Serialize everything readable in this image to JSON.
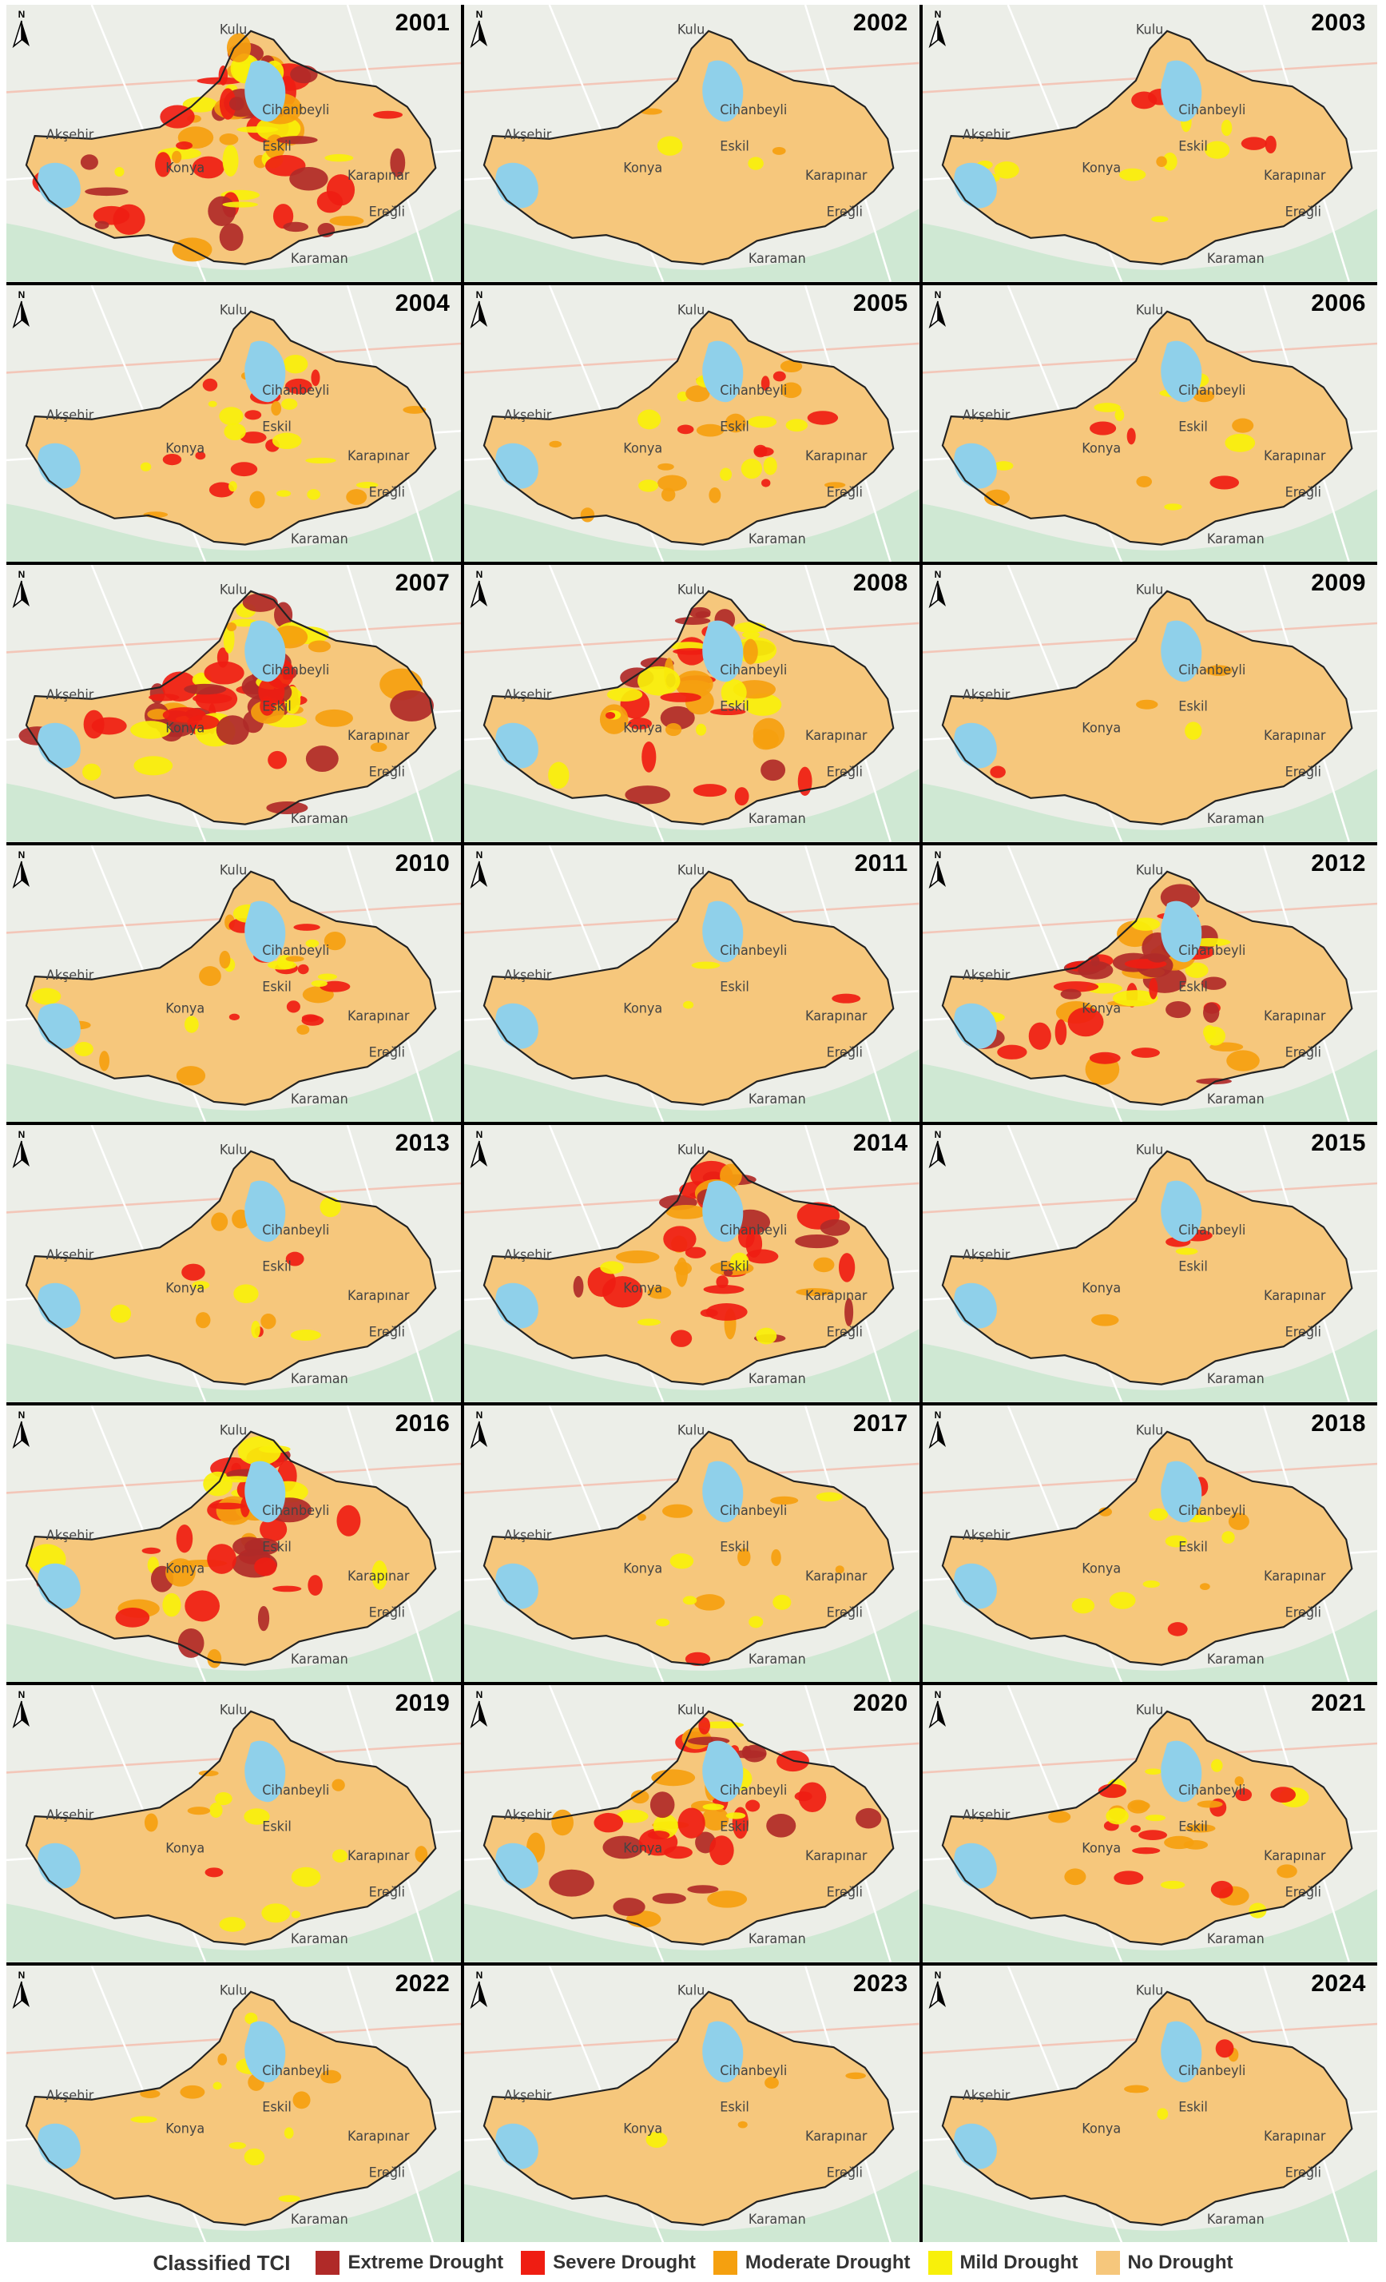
{
  "figure": {
    "legend_title": "Classified TCI",
    "north_label": "N",
    "classes": [
      {
        "label": "Extreme Drought",
        "color": "#b02a28"
      },
      {
        "label": "Severe Drought",
        "color": "#ef1d12"
      },
      {
        "label": "Moderate Drought",
        "color": "#f5a00f"
      },
      {
        "label": "Mild Drought",
        "color": "#f8f00a"
      },
      {
        "label": "No Drought",
        "color": "#f6c77c"
      }
    ],
    "place_labels": [
      "Karaman",
      "Eskil",
      "Konya",
      "Ereğli",
      "Karapınar",
      "Kulu",
      "Cihanbeyli",
      "Akşehir"
    ],
    "panels": [
      {
        "year": "2001",
        "severity": 5
      },
      {
        "year": "2002",
        "severity": 1
      },
      {
        "year": "2003",
        "severity": 2
      },
      {
        "year": "2004",
        "severity": 3
      },
      {
        "year": "2005",
        "severity": 3
      },
      {
        "year": "2006",
        "severity": 2
      },
      {
        "year": "2007",
        "severity": 5
      },
      {
        "year": "2008",
        "severity": 4
      },
      {
        "year": "2009",
        "severity": 1
      },
      {
        "year": "2010",
        "severity": 3
      },
      {
        "year": "2011",
        "severity": 1
      },
      {
        "year": "2012",
        "severity": 4
      },
      {
        "year": "2013",
        "severity": 2
      },
      {
        "year": "2014",
        "severity": 4
      },
      {
        "year": "2015",
        "severity": 1
      },
      {
        "year": "2016",
        "severity": 4
      },
      {
        "year": "2017",
        "severity": 2
      },
      {
        "year": "2018",
        "severity": 2
      },
      {
        "year": "2019",
        "severity": 2
      },
      {
        "year": "2020",
        "severity": 4
      },
      {
        "year": "2021",
        "severity": 3
      },
      {
        "year": "2022",
        "severity": 2
      },
      {
        "year": "2023",
        "severity": 1
      },
      {
        "year": "2024",
        "severity": 1
      }
    ]
  }
}
